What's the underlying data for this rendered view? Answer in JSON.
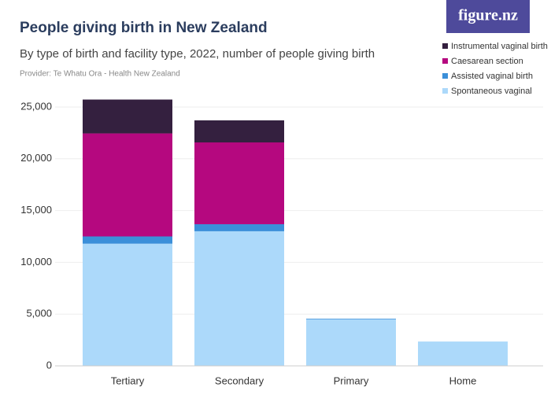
{
  "chart_data": {
    "type": "stacked_bar",
    "title": "People giving birth in New Zealand",
    "subtitle": "By type of birth and facility type, 2022, number of people giving birth",
    "source": "Provider: Te Whatu Ora - Health New Zealand",
    "logo": "figure.nz",
    "categories": [
      "Tertiary",
      "Secondary",
      "Primary",
      "Home"
    ],
    "series": [
      {
        "name": "Spontaneous vaginal",
        "color": "#acd9fa",
        "values": [
          11800,
          13000,
          4500,
          2350
        ]
      },
      {
        "name": "Assisted vaginal birth",
        "color": "#3b8fd9",
        "values": [
          700,
          680,
          60,
          0
        ]
      },
      {
        "name": "Caesarean section",
        "color": "#b5087f",
        "values": [
          9950,
          7900,
          0,
          0
        ]
      },
      {
        "name": "Instrumental vaginal birth",
        "color": "#34203f",
        "values": [
          3270,
          2130,
          0,
          0
        ]
      }
    ],
    "ylim": [
      0,
      25000
    ],
    "yticks": [
      0,
      {
        "value": 5000,
        "label": "5,000"
      },
      {
        "value": 10000,
        "label": "10,000"
      },
      {
        "value": 15000,
        "label": "15,000"
      },
      {
        "value": 20000,
        "label": "20,000"
      },
      {
        "value": 25000,
        "label": "25,000"
      }
    ],
    "grid": true
  }
}
